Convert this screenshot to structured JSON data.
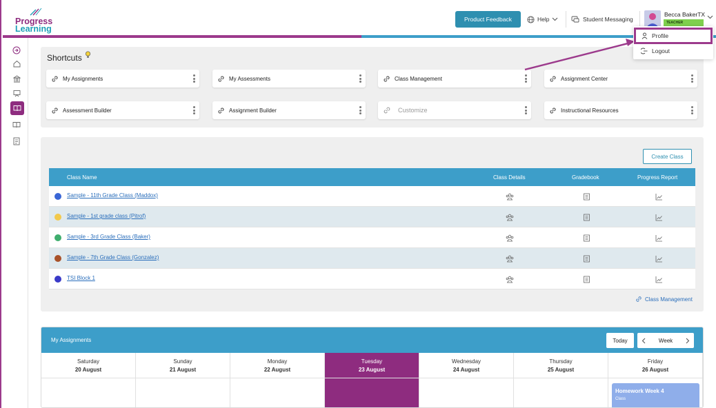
{
  "brand": {
    "line1": "Progress",
    "line2": "Learning"
  },
  "header": {
    "feedback_label": "Product Feedback",
    "help_label": "Help",
    "messaging_label": "Student Messaging",
    "user_name": "Becca BakerTX",
    "user_role": "TEACHER"
  },
  "user_menu": {
    "profile_label": "Profile",
    "logout_label": "Logout"
  },
  "sidebar": {
    "items": [
      "expand-icon",
      "home-icon",
      "school-icon",
      "presentation-icon",
      "book-icon",
      "open-book-icon",
      "report-icon"
    ]
  },
  "shortcuts": {
    "title": "Shortcuts",
    "items": [
      "My Assignments",
      "My Assessments",
      "Class Management",
      "Assignment Center",
      "Assessment Builder",
      "Assignment Builder",
      "Customize",
      "Instructional Resources"
    ]
  },
  "classes": {
    "create_label": "Create Class",
    "headers": {
      "name": "Class Name",
      "details": "Class Details",
      "gradebook": "Gradebook",
      "report": "Progress Report"
    },
    "rows": [
      {
        "name": "Sample - 11th Grade Class (Maddox)",
        "color": "#3a66d6"
      },
      {
        "name": "Sample - 1st grade class (Pitrof)",
        "color": "#f2c94c"
      },
      {
        "name": "Sample - 3rd Grade Class (Baker)",
        "color": "#3fae6e"
      },
      {
        "name": "Sample - 7th Grade Class (Gonzalez)",
        "color": "#a8522a"
      },
      {
        "name": "TSI Block 1",
        "color": "#3a3ac8"
      }
    ],
    "footer_link": "Class Management"
  },
  "assignments": {
    "title": "My Assignments",
    "today_label": "Today",
    "view_label": "Week",
    "days": [
      {
        "name": "Saturday",
        "date": "20 August"
      },
      {
        "name": "Sunday",
        "date": "21 August"
      },
      {
        "name": "Monday",
        "date": "22 August"
      },
      {
        "name": "Tuesday",
        "date": "23 August"
      },
      {
        "name": "Wednesday",
        "date": "24 August"
      },
      {
        "name": "Thursday",
        "date": "25 August"
      },
      {
        "name": "Friday",
        "date": "26 August"
      }
    ],
    "event": {
      "title": "Homework Week 4",
      "subtitle": "Class"
    }
  },
  "colors": {
    "brand_purple": "#8e2c7f",
    "brand_blue": "#3d9ec9",
    "role_green": "#7fd04e"
  }
}
